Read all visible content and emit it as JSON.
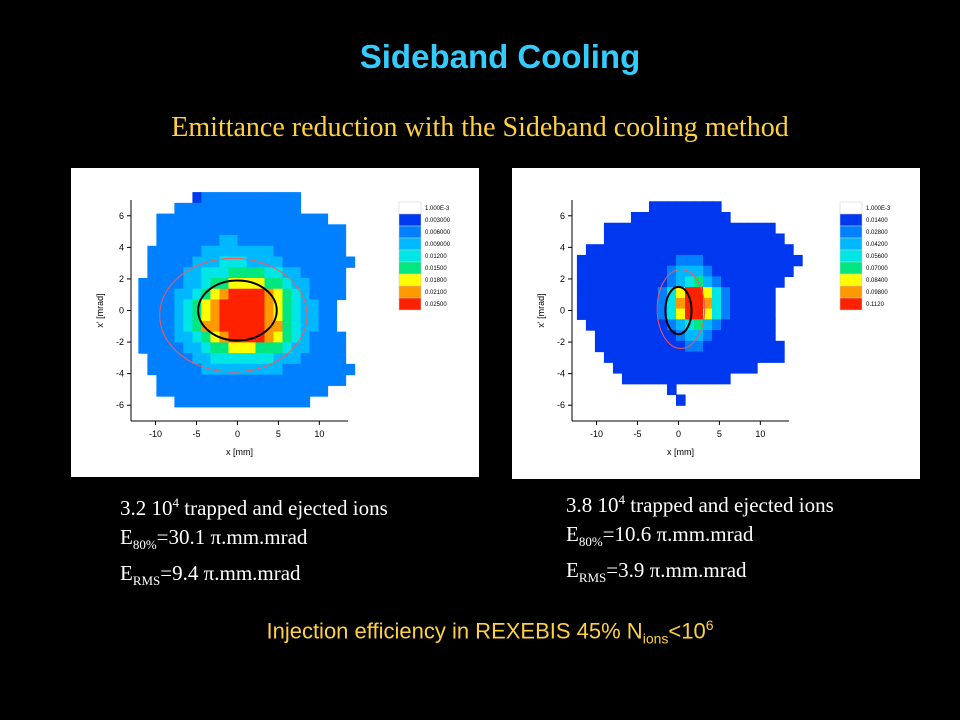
{
  "title": "Sideband Cooling",
  "subtitle": "Emittance reduction with the Sideband cooling method",
  "panels": [
    {
      "stats": {
        "line1_prefix": "3.2 10",
        "line1_exp": "4",
        "line1_suffix": " trapped and ejected ions",
        "line2_sym": "E",
        "line2_sub": "80%",
        "line2_val": "=30.1 π.mm.mrad",
        "line3_sym": "E",
        "line3_sub": "RMS",
        "line3_val": "=9.4 π.mm.mrad"
      }
    },
    {
      "stats": {
        "line1_prefix": "3.8 10",
        "line1_exp": "4",
        "line1_suffix": " trapped and ejected ions",
        "line2_sym": "E",
        "line2_sub": "80%",
        "line2_val": "=10.6 π.mm.mrad",
        "line3_sym": "E",
        "line3_sub": "RMS",
        "line3_val": "=3.9 π.mm.mrad"
      }
    }
  ],
  "footer": {
    "prefix": "Injection efficiency in REXEBIS 45% N",
    "sub": "ions",
    "mid": "<10",
    "sup": "6"
  },
  "chart_data": [
    {
      "type": "heatmap",
      "xlabel": "x [mm]",
      "ylabel": "x' [mrad]",
      "xlim": [
        -13,
        13.5
      ],
      "ylim": [
        -7,
        7
      ],
      "xticks": [
        -10,
        -5,
        0,
        5,
        10
      ],
      "yticks": [
        6,
        4,
        2,
        0,
        -2,
        -4,
        -6
      ],
      "legend_levels": [
        "1.000E-3",
        "0.003000",
        "0.006000",
        "0.009000",
        "0.01200",
        "0.01500",
        "0.01800",
        "0.02100",
        "0.02500"
      ],
      "legend_colors": [
        "#ffffff",
        "#0038f0",
        "#0080ff",
        "#00b8ff",
        "#00e6e6",
        "#00e680",
        "#ffff00",
        "#ff9900",
        "#ff2200"
      ],
      "grid": {
        "x0": -12.1,
        "y0": -6.1,
        "dx": 1.1,
        "dy": 0.68
      },
      "rows": [
        "......122222222222.......",
        "....22222222222222.......",
        "..2222222222222222222....",
        "..222222222222222222222..",
        "..222222233222222222222..",
        ".2222223333333322222222..",
        ".22222333444333322222222.",
        ".2222334445555443322222..",
        "22222334556666554332222..",
        "22223345678888765432222..",
        "2222345678888876543322...",
        "2222345678888876543322...",
        "2222345778888877543322...",
        "22223345678888765432222..",
        "22222334556665554332222..",
        ".2222233444444433322222..",
        ".22222233333333322222222.",
        "..222222222222222222222..",
        "..2222222222222222222....",
        "....222222222222222......"
      ],
      "ellipses": [
        {
          "cx": 0.0,
          "cy": 0.0,
          "rx": 4.8,
          "ry": 1.9,
          "color": "#000000"
        },
        {
          "cx": -0.5,
          "cy": -0.3,
          "rx": 9.0,
          "ry": 3.6,
          "color": "#ff5555"
        }
      ]
    },
    {
      "type": "heatmap",
      "xlabel": "x [mm]",
      "ylabel": "x' [mrad]",
      "xlim": [
        -13,
        13.5
      ],
      "ylim": [
        -7,
        7
      ],
      "xticks": [
        -10,
        -5,
        0,
        5,
        10
      ],
      "yticks": [
        6,
        4,
        2,
        0,
        -2,
        -4,
        -6
      ],
      "legend_levels": [
        "1.000E-3",
        "0.01400",
        "0.02800",
        "0.04200",
        "0.05600",
        "0.07000",
        "0.08400",
        "0.09800",
        "0.1120"
      ],
      "legend_colors": [
        "#ffffff",
        "#0038f0",
        "#0080ff",
        "#00b8ff",
        "#00e6e6",
        "#00e680",
        "#ffff00",
        "#ff9900",
        "#ff2200"
      ],
      "grid": {
        "x0": -12.4,
        "y0": -6.0,
        "dx": 1.1,
        "dy": 0.68
      },
      "rows": [
        "........11111111.........",
        "......11111111111........",
        "...1111111111111111111...",
        "...11111111111111111111..",
        ".11111111111111111111111.",
        "1111111111122211111111111",
        "111111111123332111111111.",
        "11111111112345321111111..",
        "1111111112468864211111...",
        "1111111112478874211111...",
        "1111111112468864211111...",
        ".111111111234532111111...",
        "..11111111123321111111...",
        "..111111111122111111111..",
        "...11111111111111111111..",
        "....1111111111111111.....",
        ".....111111111111........",
        "..........1..............",
        "...........1............."
      ],
      "ellipses": [
        {
          "cx": 0.0,
          "cy": 0.0,
          "rx": 1.6,
          "ry": 1.5,
          "color": "#000000"
        },
        {
          "cx": 0.3,
          "cy": 0.1,
          "rx": 2.9,
          "ry": 2.5,
          "color": "#ff5555"
        }
      ]
    }
  ]
}
